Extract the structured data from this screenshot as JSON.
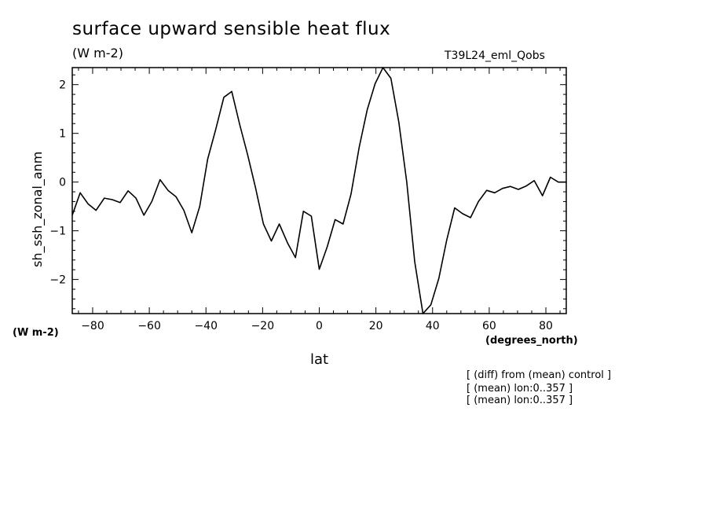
{
  "figure": {
    "title": "surface upward sensible heat flux",
    "units": "(W m-2)",
    "run_label": "T39L24_eml_Qobs",
    "y_units": "(W m-2)",
    "x_units": "(degrees_north)",
    "notes": [
      "[ (diff) from (mean) control ]",
      "[ (mean) lon:0..357 ]",
      "[ (mean) lon:0..357 ]"
    ]
  },
  "chart_data": {
    "type": "line",
    "title": "surface upward sensible heat flux",
    "xlabel": "lat",
    "ylabel": "sh_ssh_zonal_anm",
    "xlim": [
      -87.2,
      87.2
    ],
    "ylim": [
      -2.7,
      2.35
    ],
    "xticks": [
      -80,
      -60,
      -40,
      -20,
      0,
      20,
      40,
      60,
      80
    ],
    "yticks": [
      -2,
      -1,
      0,
      1,
      2
    ],
    "xtick_labels": [
      "−80",
      "−60",
      "−40",
      "−20",
      "0",
      "20",
      "40",
      "60",
      "80"
    ],
    "ytick_labels": [
      "−2",
      "−1",
      "0",
      "1",
      "2"
    ],
    "grid": false,
    "series": [
      {
        "color": "#000000",
        "x": [
          -87.2,
          -84.4,
          -81.6,
          -78.8,
          -75.9,
          -73.1,
          -70.3,
          -67.5,
          -64.7,
          -61.9,
          -59.1,
          -56.2,
          -53.4,
          -50.6,
          -47.8,
          -45.0,
          -42.2,
          -39.4,
          -36.6,
          -33.7,
          -30.9,
          -28.1,
          -25.3,
          -22.5,
          -19.7,
          -16.9,
          -14.1,
          -11.2,
          -8.4,
          -5.6,
          -2.8,
          0.0,
          2.8,
          5.6,
          8.4,
          11.2,
          14.1,
          16.9,
          19.7,
          22.5,
          25.3,
          28.1,
          30.9,
          33.7,
          36.6,
          39.4,
          42.2,
          45.0,
          47.8,
          50.6,
          53.4,
          56.2,
          59.1,
          61.9,
          64.7,
          67.5,
          70.3,
          73.1,
          75.9,
          78.8,
          81.6,
          84.4,
          87.2
        ],
        "y": [
          -0.68,
          -0.22,
          -0.45,
          -0.58,
          -0.33,
          -0.36,
          -0.42,
          -0.18,
          -0.33,
          -0.68,
          -0.4,
          0.05,
          -0.17,
          -0.3,
          -0.58,
          -1.04,
          -0.5,
          0.47,
          1.07,
          1.74,
          1.86,
          1.18,
          0.56,
          -0.12,
          -0.86,
          -1.21,
          -0.86,
          -1.25,
          -1.55,
          -0.6,
          -0.7,
          -1.79,
          -1.33,
          -0.77,
          -0.86,
          -0.25,
          0.72,
          1.48,
          2.02,
          2.36,
          2.13,
          1.23,
          0.0,
          -1.63,
          -2.75,
          -2.52,
          -1.98,
          -1.19,
          -0.53,
          -0.65,
          -0.73,
          -0.4,
          -0.17,
          -0.22,
          -0.13,
          -0.09,
          -0.15,
          -0.08,
          0.03,
          -0.28,
          0.1,
          0.0,
          0.0
        ]
      }
    ]
  }
}
